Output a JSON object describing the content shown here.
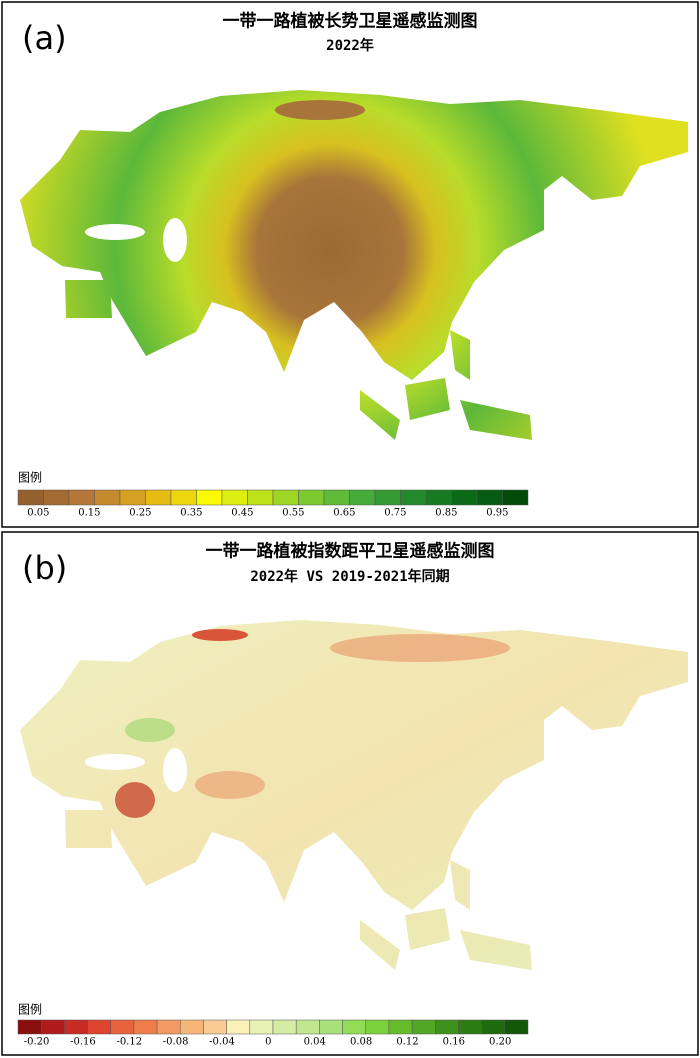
{
  "panels": [
    {
      "label": "(a)",
      "title": "一带一路植被长势卫星遥感监测图",
      "subtitle": "2022年",
      "legend": {
        "title": "图例",
        "colors": [
          "#94602e",
          "#a36a32",
          "#b57638",
          "#c68a2e",
          "#d6a020",
          "#e4bc14",
          "#eed60e",
          "#fafa00",
          "#dcef10",
          "#bde21a",
          "#9ed626",
          "#7dca30",
          "#60bb38",
          "#46ab3a",
          "#339a34",
          "#24892c",
          "#157a22",
          "#0b6a18",
          "#065c10",
          "#024a08"
        ],
        "labels": [
          "0.05",
          "0.15",
          "0.25",
          "0.35",
          "0.45",
          "0.55",
          "0.65",
          "0.75",
          "0.85",
          "0.95"
        ]
      }
    },
    {
      "label": "(b)",
      "title": "一带一路植被指数距平卫星遥感监测图",
      "subtitle": "2022年 VS 2019-2021年同期",
      "legend": {
        "title": "图例",
        "colors": [
          "#8b0e0e",
          "#b01a1a",
          "#c82a24",
          "#dc4430",
          "#e8633c",
          "#ef7d4c",
          "#f39a62",
          "#f6b67a",
          "#f8cc94",
          "#faf0b8",
          "#e8f2b4",
          "#d4eca4",
          "#c0e690",
          "#a8e07a",
          "#92dc58",
          "#7cd23a",
          "#66bc2c",
          "#52a824",
          "#3e921c",
          "#2c7c14",
          "#1e6a0e",
          "#125808"
        ],
        "labels": [
          "-0.20",
          "-0.16",
          "-0.12",
          "-0.08",
          "-0.04",
          "0",
          "0.04",
          "0.08",
          "0.12",
          "0.16",
          "0.20"
        ]
      }
    }
  ]
}
